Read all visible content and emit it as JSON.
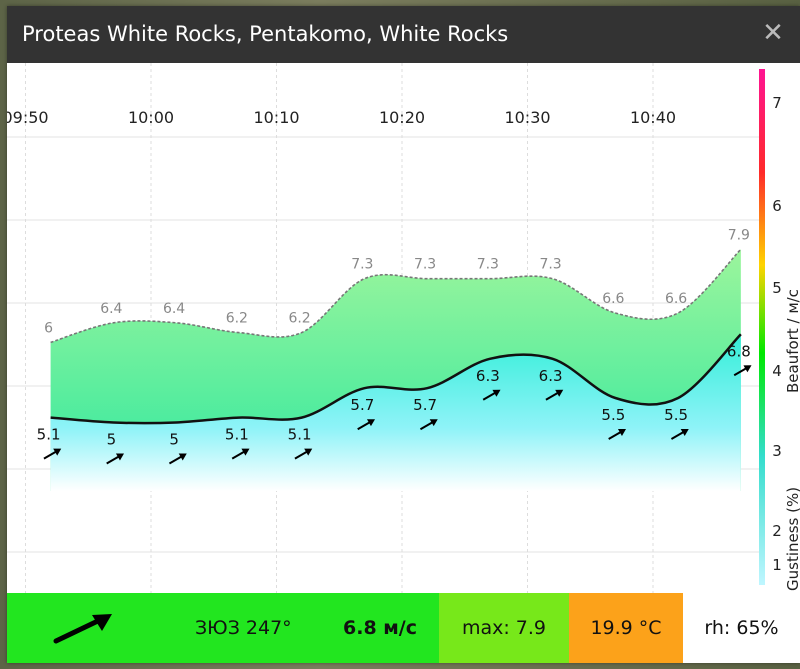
{
  "popup": {
    "title": "Proteas White Rocks, Pentakomo, White Rocks",
    "close_label": "✕"
  },
  "chart_data": {
    "type": "area",
    "x": [
      "09:52",
      "09:57",
      "10:02",
      "10:07",
      "10:12",
      "10:17",
      "10:22",
      "10:27",
      "10:32",
      "10:37",
      "10:42",
      "10:47"
    ],
    "x_tick_labels": [
      "09:50",
      "10:00",
      "10:10",
      "10:20",
      "10:30",
      "10:40"
    ],
    "series": [
      {
        "role": "gust",
        "values": [
          6,
          6.4,
          6.4,
          6.2,
          6.2,
          7.3,
          7.3,
          7.3,
          7.3,
          6.6,
          6.6,
          7.9
        ],
        "labels": [
          "6",
          "6.4",
          "6.4",
          "6.2",
          "6.2",
          "7.3",
          "7.3",
          "7.3",
          "7.3",
          "6.6",
          "6.6",
          "7.9"
        ]
      },
      {
        "role": "wind",
        "values": [
          5.1,
          5,
          5,
          5.1,
          5.1,
          5.7,
          5.7,
          6.3,
          6.3,
          5.5,
          5.5,
          6.8
        ],
        "labels": [
          "5.1",
          "5",
          "5",
          "5.1",
          "5.1",
          "5.7",
          "5.7",
          "6.3",
          "6.3",
          "5.5",
          "5.5",
          "6.8"
        ]
      }
    ],
    "y_right_ticks": [
      "7",
      "6",
      "5",
      "4",
      "3",
      "2",
      "1"
    ],
    "y_right_label_top": "Beaufort / м/с",
    "y_right_label_bottom": "Gustiness (%)",
    "scale_colors": [
      "#ff1493",
      "#ff2a2a",
      "#ffd400",
      "#00e800",
      "#33ddcc",
      "#8ff3ff"
    ],
    "gust_fill_color": "#a6f5a6",
    "wind_fill_color": "#3ff0d8"
  },
  "infobar": {
    "direction": "ЗЮЗ 247°",
    "direction_arrow": "wind-arrow-icon",
    "speed": "6.8 м/с",
    "max": "max: 7.9",
    "temperature": "19.9 °C",
    "humidity": "rh: 65%",
    "colors": {
      "speed": "#22e61f",
      "max": "#77e81a",
      "temp": "#fca21a"
    }
  }
}
